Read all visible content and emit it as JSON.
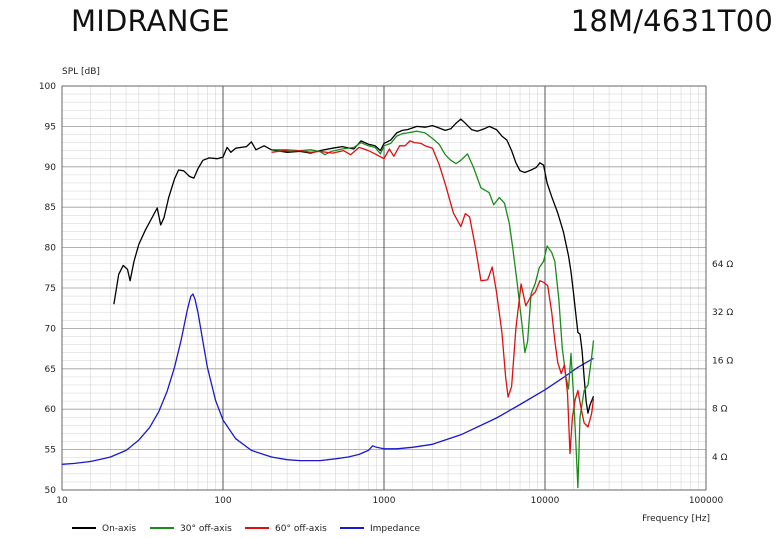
{
  "header": {
    "left_title": "MIDRANGE",
    "right_title": "18M/4631T00"
  },
  "chart_data": {
    "type": "line",
    "title": "",
    "ylabel": "SPL [dB]",
    "xlabel": "Frequency [Hz]",
    "x_scale": "log",
    "xlim": [
      10,
      100000
    ],
    "ylim": [
      50,
      100
    ],
    "x_ticks": [
      10,
      100,
      1000,
      10000,
      100000
    ],
    "x_tick_labels": [
      "10",
      "100",
      "1000",
      "10000",
      "100000"
    ],
    "y_ticks": [
      50,
      55,
      60,
      65,
      70,
      75,
      80,
      85,
      90,
      95,
      100
    ],
    "y_tick_labels": [
      "50",
      "55",
      "60",
      "65",
      "70",
      "75",
      "80",
      "85",
      "90",
      "95",
      "100"
    ],
    "right_axis": {
      "unit": "Ω",
      "scale": "log",
      "ticks": [
        4,
        8,
        16,
        32,
        64
      ],
      "tick_labels": [
        "4 Ω",
        "8 Ω",
        "16 Ω",
        "32 Ω",
        "64 Ω"
      ]
    },
    "grid": true,
    "legend_position": "bottom",
    "series": [
      {
        "name": "On-axis",
        "color": "#000000",
        "axis": "left",
        "points": [
          [
            21,
            73
          ],
          [
            22.5,
            76.7
          ],
          [
            24,
            77.8
          ],
          [
            25.5,
            77.3
          ],
          [
            26.5,
            75.9
          ],
          [
            28,
            78.3
          ],
          [
            30,
            80.4
          ],
          [
            33,
            82.2
          ],
          [
            36,
            83.6
          ],
          [
            39,
            84.9
          ],
          [
            41,
            82.8
          ],
          [
            43,
            83.7
          ],
          [
            46,
            86.2
          ],
          [
            50,
            88.5
          ],
          [
            53,
            89.6
          ],
          [
            57,
            89.5
          ],
          [
            62,
            88.8
          ],
          [
            66,
            88.6
          ],
          [
            70,
            89.8
          ],
          [
            75,
            90.8
          ],
          [
            82,
            91.1
          ],
          [
            92,
            91.0
          ],
          [
            100,
            91.2
          ],
          [
            106,
            92.4
          ],
          [
            112,
            91.8
          ],
          [
            120,
            92.3
          ],
          [
            140,
            92.5
          ],
          [
            150,
            93.1
          ],
          [
            160,
            92.1
          ],
          [
            180,
            92.6
          ],
          [
            200,
            92.1
          ],
          [
            250,
            91.8
          ],
          [
            300,
            91.9
          ],
          [
            350,
            91.7
          ],
          [
            400,
            92.0
          ],
          [
            480,
            92.3
          ],
          [
            550,
            92.5
          ],
          [
            650,
            92.2
          ],
          [
            720,
            93.2
          ],
          [
            800,
            92.8
          ],
          [
            880,
            92.6
          ],
          [
            950,
            92.0
          ],
          [
            1000,
            92.9
          ],
          [
            1100,
            93.3
          ],
          [
            1200,
            94.2
          ],
          [
            1300,
            94.5
          ],
          [
            1400,
            94.6
          ],
          [
            1600,
            95.0
          ],
          [
            1800,
            94.9
          ],
          [
            2000,
            95.1
          ],
          [
            2200,
            94.8
          ],
          [
            2400,
            94.5
          ],
          [
            2600,
            94.7
          ],
          [
            2800,
            95.4
          ],
          [
            3000,
            95.9
          ],
          [
            3200,
            95.4
          ],
          [
            3500,
            94.6
          ],
          [
            3800,
            94.4
          ],
          [
            4200,
            94.7
          ],
          [
            4500,
            95.0
          ],
          [
            5000,
            94.6
          ],
          [
            5400,
            93.8
          ],
          [
            5800,
            93.3
          ],
          [
            6200,
            92.0
          ],
          [
            6600,
            90.5
          ],
          [
            7000,
            89.5
          ],
          [
            7500,
            89.3
          ],
          [
            8200,
            89.6
          ],
          [
            8800,
            89.9
          ],
          [
            9300,
            90.5
          ],
          [
            9800,
            90.2
          ],
          [
            10300,
            88.0
          ],
          [
            11000,
            86.3
          ],
          [
            12000,
            84.3
          ],
          [
            13000,
            82.0
          ],
          [
            14000,
            79.0
          ],
          [
            14500,
            77.0
          ],
          [
            15000,
            74.5
          ],
          [
            15500,
            72.0
          ],
          [
            16000,
            69.5
          ],
          [
            16500,
            69.3
          ],
          [
            17000,
            67.2
          ],
          [
            17500,
            64.0
          ],
          [
            18000,
            61.0
          ],
          [
            18500,
            59.5
          ],
          [
            19000,
            60.5
          ],
          [
            20000,
            61.6
          ]
        ]
      },
      {
        "name": "30° off-axis",
        "color": "#1a8c1a",
        "axis": "left",
        "points": [
          [
            200,
            92.1
          ],
          [
            250,
            92.1
          ],
          [
            300,
            92.0
          ],
          [
            350,
            92.1
          ],
          [
            400,
            91.9
          ],
          [
            430,
            91.5
          ],
          [
            470,
            91.9
          ],
          [
            550,
            92.2
          ],
          [
            650,
            92.4
          ],
          [
            720,
            93.0
          ],
          [
            800,
            92.6
          ],
          [
            880,
            92.4
          ],
          [
            950,
            91.6
          ],
          [
            1000,
            92.6
          ],
          [
            1100,
            92.9
          ],
          [
            1200,
            93.8
          ],
          [
            1300,
            94.1
          ],
          [
            1400,
            94.2
          ],
          [
            1600,
            94.4
          ],
          [
            1800,
            94.2
          ],
          [
            2000,
            93.5
          ],
          [
            2200,
            92.8
          ],
          [
            2400,
            91.5
          ],
          [
            2600,
            90.8
          ],
          [
            2800,
            90.4
          ],
          [
            3000,
            90.8
          ],
          [
            3300,
            91.6
          ],
          [
            3600,
            89.9
          ],
          [
            4000,
            87.4
          ],
          [
            4500,
            86.8
          ],
          [
            4800,
            85.3
          ],
          [
            5200,
            86.2
          ],
          [
            5600,
            85.5
          ],
          [
            6000,
            83.0
          ],
          [
            6300,
            80.0
          ],
          [
            6700,
            75.8
          ],
          [
            7000,
            72.5
          ],
          [
            7200,
            70.5
          ],
          [
            7500,
            67.0
          ],
          [
            7800,
            68.4
          ],
          [
            8200,
            74.3
          ],
          [
            8700,
            75.6
          ],
          [
            9200,
            77.5
          ],
          [
            9800,
            78.3
          ],
          [
            10300,
            80.2
          ],
          [
            11000,
            79.4
          ],
          [
            11500,
            78.3
          ],
          [
            12200,
            73.5
          ],
          [
            12800,
            67.5
          ],
          [
            13500,
            64.0
          ],
          [
            14000,
            62.5
          ],
          [
            14500,
            66.9
          ],
          [
            15000,
            62.0
          ],
          [
            15500,
            56.5
          ],
          [
            16000,
            50.3
          ],
          [
            16500,
            59.0
          ],
          [
            17500,
            62.3
          ],
          [
            18500,
            63.0
          ],
          [
            19500,
            66.5
          ],
          [
            20000,
            68.5
          ]
        ]
      },
      {
        "name": "60° off-axis",
        "color": "#dd1111",
        "axis": "left",
        "points": [
          [
            200,
            91.8
          ],
          [
            240,
            92.0
          ],
          [
            260,
            91.9
          ],
          [
            300,
            92.0
          ],
          [
            350,
            91.8
          ],
          [
            400,
            91.9
          ],
          [
            480,
            91.7
          ],
          [
            560,
            92.0
          ],
          [
            620,
            91.5
          ],
          [
            700,
            92.4
          ],
          [
            800,
            92.0
          ],
          [
            900,
            91.5
          ],
          [
            1000,
            91.0
          ],
          [
            1080,
            92.2
          ],
          [
            1150,
            91.3
          ],
          [
            1250,
            92.6
          ],
          [
            1350,
            92.6
          ],
          [
            1450,
            93.2
          ],
          [
            1550,
            93.0
          ],
          [
            1700,
            92.9
          ],
          [
            1800,
            92.6
          ],
          [
            2000,
            92.3
          ],
          [
            2200,
            90.3
          ],
          [
            2400,
            87.9
          ],
          [
            2700,
            84.3
          ],
          [
            3000,
            82.6
          ],
          [
            3200,
            84.2
          ],
          [
            3400,
            83.8
          ],
          [
            3700,
            80.0
          ],
          [
            4000,
            75.9
          ],
          [
            4400,
            76.0
          ],
          [
            4700,
            77.6
          ],
          [
            5000,
            74.5
          ],
          [
            5400,
            69.5
          ],
          [
            5700,
            63.9
          ],
          [
            5900,
            61.5
          ],
          [
            6200,
            62.8
          ],
          [
            6600,
            70.0
          ],
          [
            7100,
            75.5
          ],
          [
            7600,
            72.8
          ],
          [
            8200,
            74.0
          ],
          [
            8700,
            74.5
          ],
          [
            9300,
            75.9
          ],
          [
            9800,
            75.7
          ],
          [
            10400,
            75.3
          ],
          [
            11000,
            72.0
          ],
          [
            11500,
            68.5
          ],
          [
            12000,
            65.8
          ],
          [
            12600,
            64.4
          ],
          [
            13200,
            65.5
          ],
          [
            13800,
            62.0
          ],
          [
            14300,
            54.5
          ],
          [
            14800,
            59.0
          ],
          [
            15400,
            61.2
          ],
          [
            16000,
            62.3
          ],
          [
            16800,
            60.0
          ],
          [
            17500,
            58.3
          ],
          [
            18500,
            57.8
          ],
          [
            19500,
            59.5
          ],
          [
            20000,
            61.3
          ]
        ]
      },
      {
        "name": "Impedance",
        "color": "#1a1acc",
        "axis": "right",
        "points": [
          [
            10,
            3.6
          ],
          [
            12,
            3.65
          ],
          [
            15,
            3.75
          ],
          [
            18,
            3.9
          ],
          [
            20,
            4.0
          ],
          [
            25,
            4.4
          ],
          [
            30,
            5.1
          ],
          [
            35,
            6.1
          ],
          [
            40,
            7.7
          ],
          [
            45,
            10.3
          ],
          [
            50,
            14.5
          ],
          [
            55,
            21.5
          ],
          [
            60,
            33.0
          ],
          [
            63,
            40.0
          ],
          [
            65,
            41.5
          ],
          [
            67,
            38.5
          ],
          [
            70,
            31.5
          ],
          [
            75,
            21.0
          ],
          [
            80,
            14.5
          ],
          [
            90,
            9.0
          ],
          [
            100,
            6.8
          ],
          [
            120,
            5.2
          ],
          [
            150,
            4.4
          ],
          [
            200,
            4.0
          ],
          [
            250,
            3.85
          ],
          [
            300,
            3.8
          ],
          [
            400,
            3.8
          ],
          [
            500,
            3.9
          ],
          [
            600,
            4.0
          ],
          [
            700,
            4.15
          ],
          [
            800,
            4.4
          ],
          [
            850,
            4.7
          ],
          [
            900,
            4.6
          ],
          [
            1000,
            4.5
          ],
          [
            1200,
            4.5
          ],
          [
            1500,
            4.6
          ],
          [
            2000,
            4.8
          ],
          [
            3000,
            5.5
          ],
          [
            5000,
            7.0
          ],
          [
            7000,
            8.5
          ],
          [
            10000,
            10.5
          ],
          [
            13000,
            12.5
          ],
          [
            16000,
            14.5
          ],
          [
            20000,
            16.5
          ]
        ]
      }
    ]
  }
}
